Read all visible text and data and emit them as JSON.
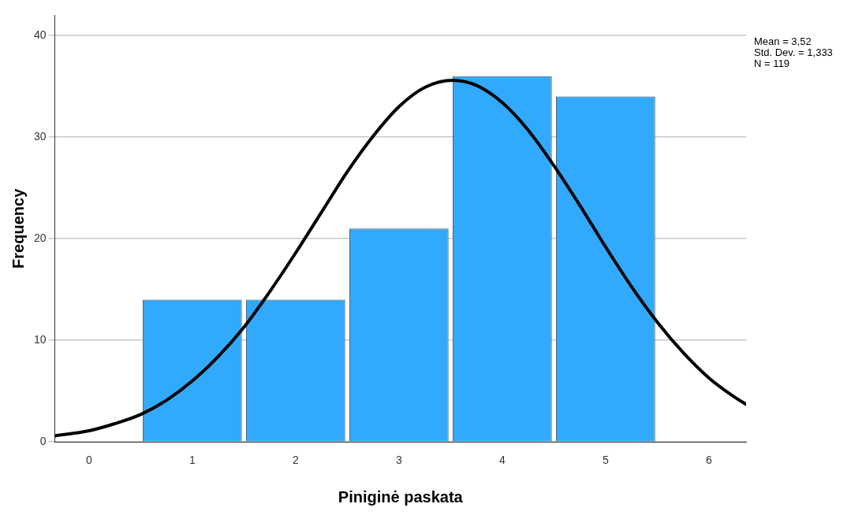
{
  "chart_data": {
    "type": "histogram",
    "xlabel": "Piniginė paskata",
    "ylabel": "Frequency",
    "bins": [
      0.5,
      1.5,
      2.5,
      3.5,
      4.5,
      5.5
    ],
    "values": [
      14,
      14,
      21,
      36,
      34
    ],
    "color": "#31aafd",
    "series": [
      {
        "type": "line",
        "color": "#000000",
        "x": [
          -0.33,
          0,
          0.25,
          0.5,
          0.75,
          1,
          1.25,
          1.5,
          1.75,
          2,
          2.25,
          2.5,
          2.75,
          3,
          3.25,
          3.52,
          3.75,
          4,
          4.25,
          4.5,
          4.75,
          5,
          5.25,
          5.5,
          5.75,
          6,
          6.25,
          6.36
        ],
        "values": [
          0.6,
          1.1,
          1.8,
          2.7,
          4.1,
          6,
          8.4,
          11.3,
          14.8,
          18.6,
          22.6,
          26.6,
          30.1,
          33,
          34.9,
          35.6,
          35.1,
          33.4,
          30.7,
          27.2,
          23.3,
          19.2,
          15.3,
          11.8,
          8.8,
          6.3,
          4.4,
          3.7
        ]
      }
    ],
    "marker": "none",
    "line_style": "solid",
    "xlim": [
      -0.33,
      6.36
    ],
    "xticks": [
      0,
      1,
      2,
      3,
      4,
      5,
      6
    ],
    "ylim": [
      0,
      42
    ],
    "yticks": [
      0,
      10,
      20,
      30,
      40
    ],
    "grid": "y",
    "legend": false,
    "annotations": [
      "Mean = 3,52",
      "Std. Dev. = 1,333",
      "N = 119"
    ]
  }
}
